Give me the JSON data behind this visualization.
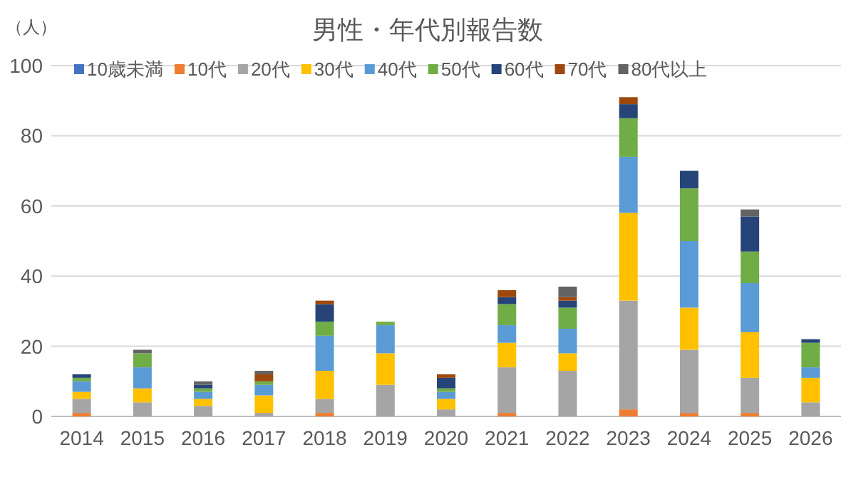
{
  "chart_data": {
    "type": "bar",
    "stacked": true,
    "title": "男性・年代別報告数",
    "ylabel": "（人）",
    "categories": [
      "2014",
      "2015",
      "2016",
      "2017",
      "2018",
      "2019",
      "2020",
      "2021",
      "2022",
      "2023",
      "2024",
      "2025",
      "2026"
    ],
    "ylim": [
      0,
      100
    ],
    "yticks": [
      0,
      20,
      40,
      60,
      80,
      100
    ],
    "grid": "y",
    "legend": "top",
    "series": [
      {
        "name": "10歳未満",
        "color": "#4472c4",
        "values": [
          0,
          0,
          0,
          0,
          0,
          0,
          0,
          0,
          0,
          0,
          0,
          0,
          0
        ]
      },
      {
        "name": "10代",
        "color": "#ed7d31",
        "values": [
          1,
          0,
          0,
          0,
          1,
          0,
          0,
          1,
          0,
          2,
          1,
          1,
          0
        ]
      },
      {
        "name": "20代",
        "color": "#a5a5a5",
        "values": [
          4,
          4,
          3,
          1,
          4,
          9,
          2,
          13,
          13,
          31,
          18,
          10,
          4
        ]
      },
      {
        "name": "30代",
        "color": "#ffc000",
        "values": [
          2,
          4,
          2,
          5,
          8,
          9,
          3,
          7,
          5,
          25,
          12,
          13,
          7
        ]
      },
      {
        "name": "40代",
        "color": "#5b9bd5",
        "values": [
          3,
          6,
          2,
          3,
          10,
          8,
          2,
          5,
          7,
          16,
          19,
          14,
          3
        ]
      },
      {
        "name": "50代",
        "color": "#70ad47",
        "values": [
          1,
          4,
          1,
          1,
          4,
          1,
          1,
          6,
          6,
          11,
          15,
          9,
          7
        ]
      },
      {
        "name": "60代",
        "color": "#264478",
        "values": [
          1,
          0,
          1,
          0,
          5,
          0,
          3,
          2,
          2,
          4,
          5,
          10,
          1
        ]
      },
      {
        "name": "70代",
        "color": "#9e480e",
        "values": [
          0,
          0,
          0,
          2,
          1,
          0,
          1,
          2,
          1,
          2,
          0,
          0,
          0
        ]
      },
      {
        "name": "80代以上",
        "color": "#636363",
        "values": [
          0,
          1,
          1,
          1,
          0,
          0,
          0,
          0,
          3,
          0,
          0,
          2,
          0
        ]
      }
    ]
  }
}
